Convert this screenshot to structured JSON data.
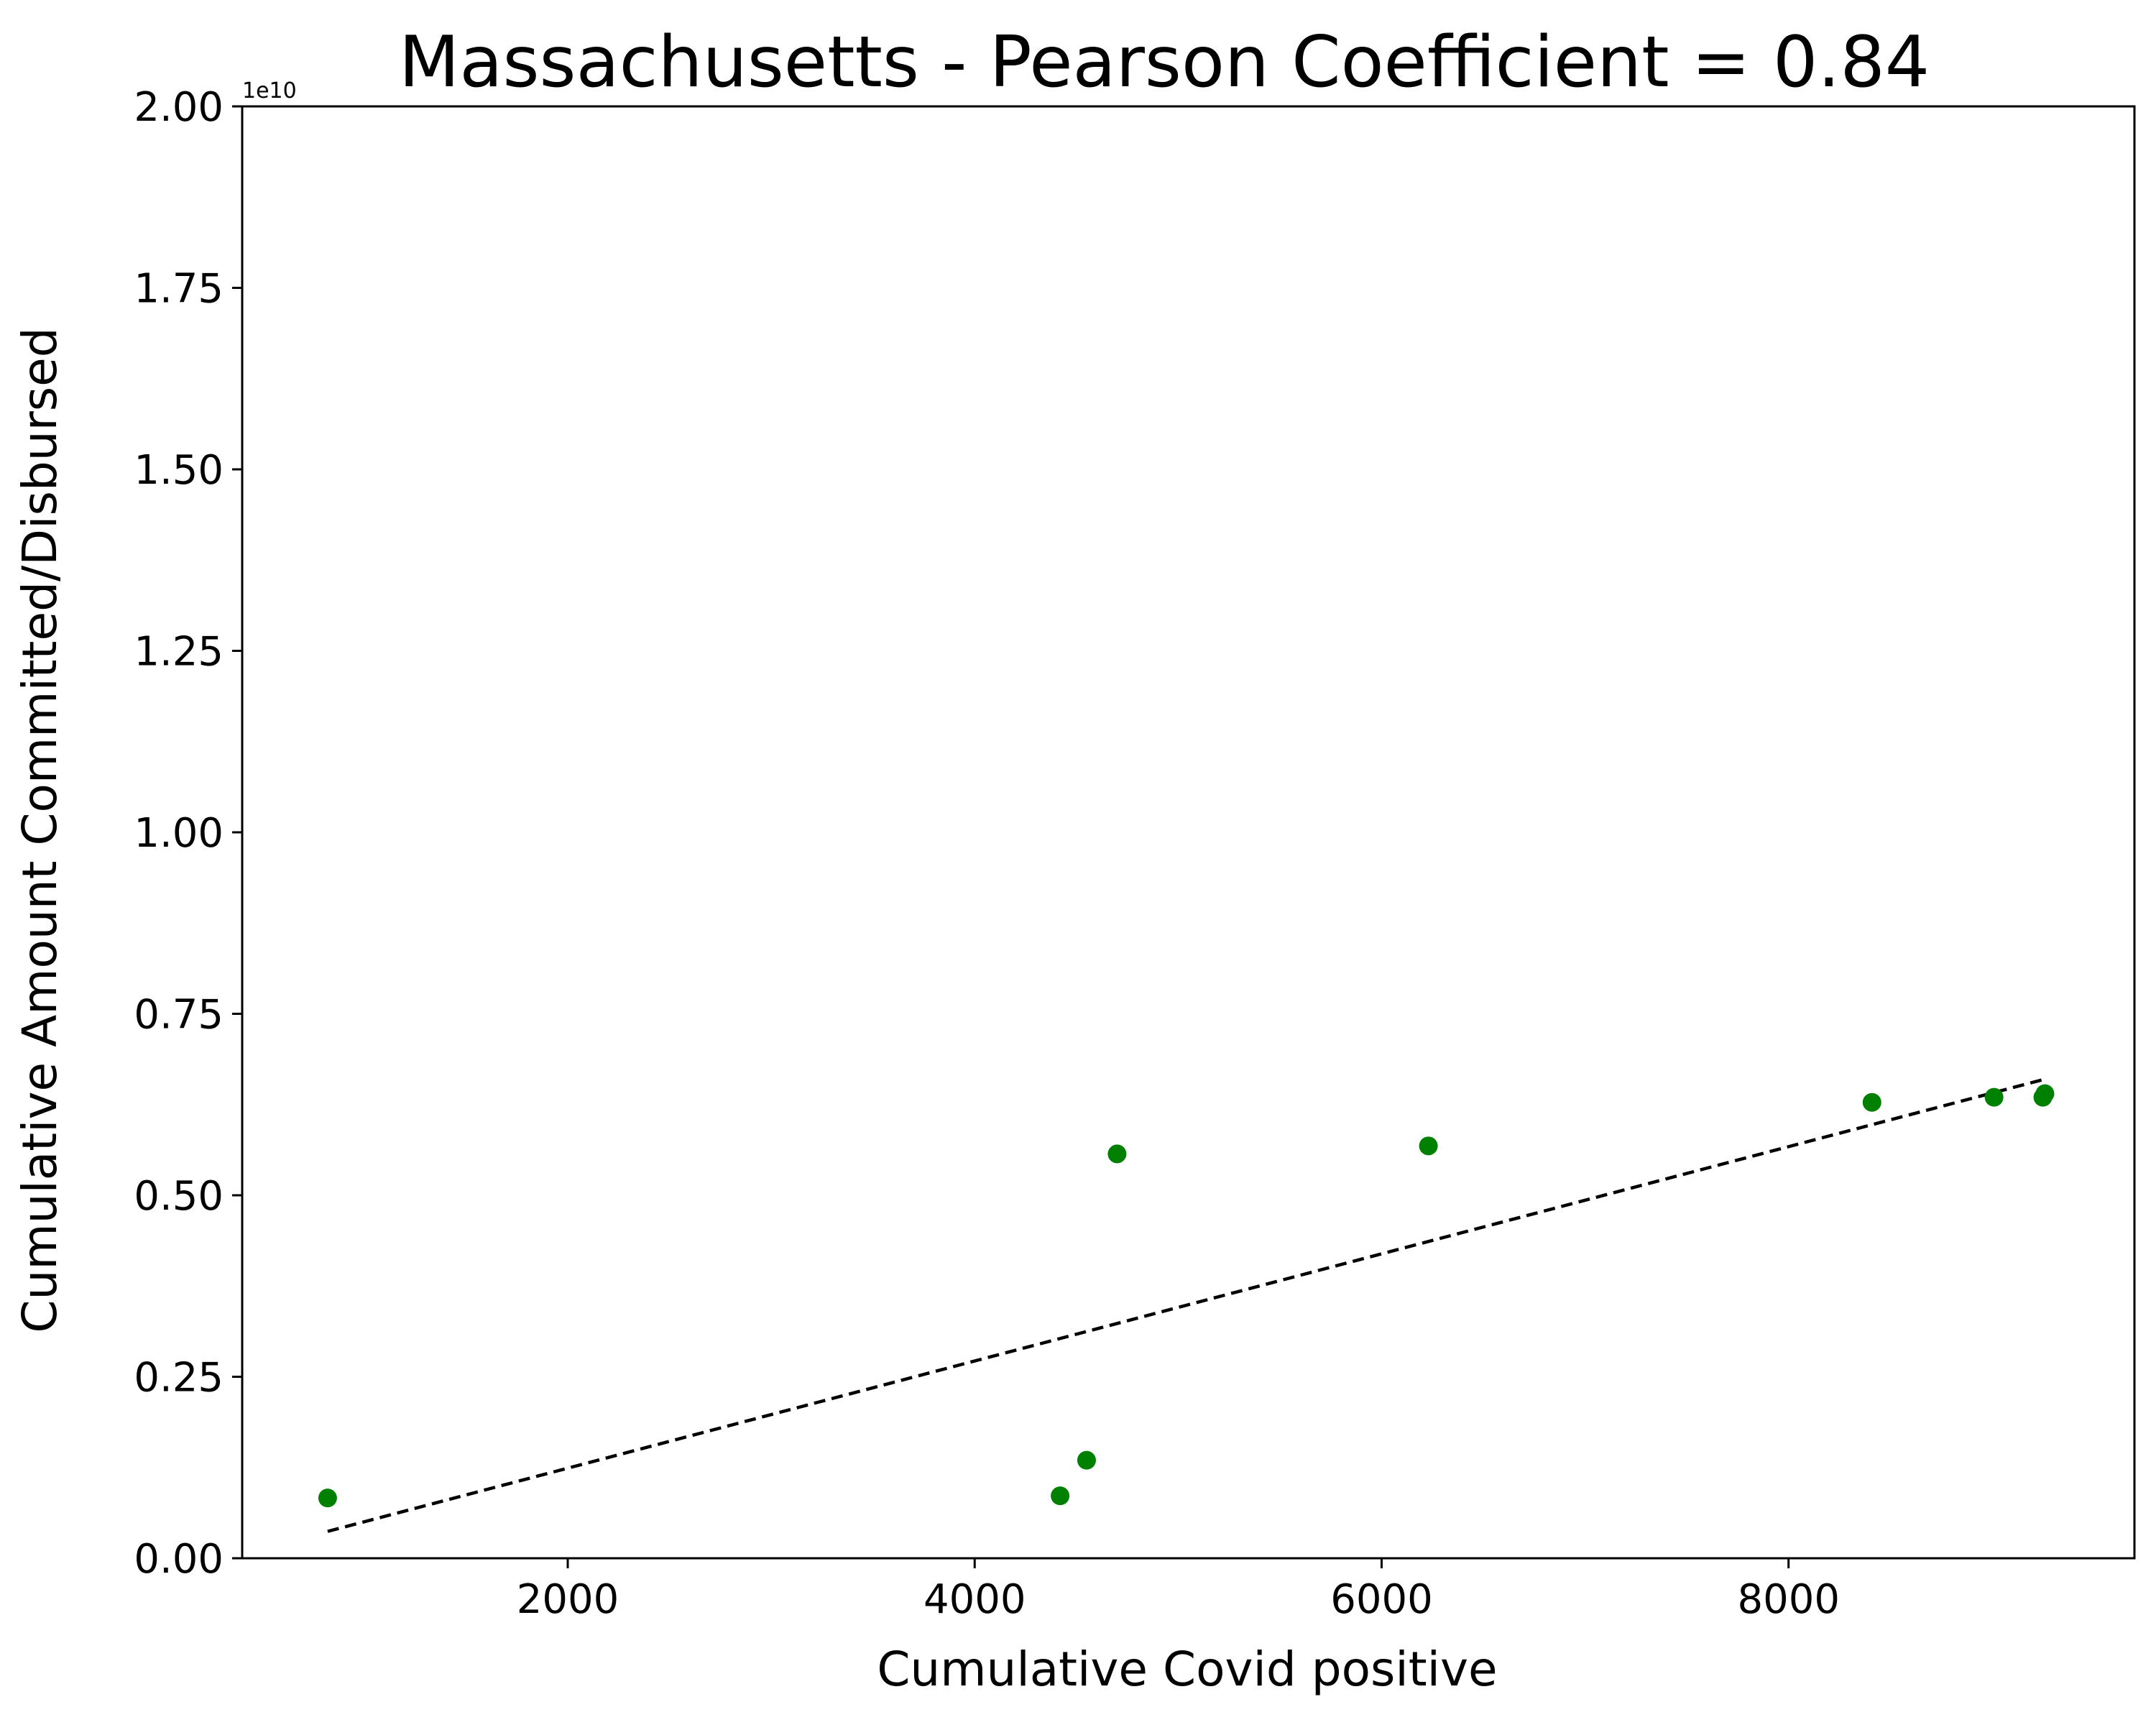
{
  "chart_data": {
    "type": "scatter",
    "title": "Massachusetts - Pearson Coefficient = 0.84",
    "xlabel": "Cumulative Covid positive",
    "ylabel": "Cumulative Amount Committed/Disbursed",
    "y_offset_text": "1e10",
    "xlim": [
      400,
      9700
    ],
    "ylim": [
      0,
      2.0
    ],
    "x_ticks": [
      2000,
      4000,
      6000,
      8000
    ],
    "x_tick_labels": [
      "2000",
      "4000",
      "6000",
      "8000"
    ],
    "y_ticks": [
      0,
      0.25,
      0.5,
      0.75,
      1.0,
      1.25,
      1.5,
      1.75,
      2.0
    ],
    "y_tick_labels": [
      "0.00",
      "0.25",
      "0.50",
      "0.75",
      "1.00",
      "1.25",
      "1.50",
      "1.75",
      "2.00"
    ],
    "grid": false,
    "series": [
      {
        "type": "scatter",
        "color": "#008000",
        "points": [
          {
            "x": 820,
            "y": 0.083
          },
          {
            "x": 4420,
            "y": 0.086
          },
          {
            "x": 4550,
            "y": 0.135
          },
          {
            "x": 4700,
            "y": 0.557
          },
          {
            "x": 6230,
            "y": 0.568
          },
          {
            "x": 8410,
            "y": 0.628
          },
          {
            "x": 9010,
            "y": 0.635
          },
          {
            "x": 9250,
            "y": 0.635
          },
          {
            "x": 9260,
            "y": 0.64
          }
        ]
      },
      {
        "type": "trendline",
        "style": "dashed",
        "color": "#000000",
        "points": [
          {
            "x": 820,
            "y": 0.037
          },
          {
            "x": 9260,
            "y": 0.66
          }
        ]
      }
    ]
  }
}
